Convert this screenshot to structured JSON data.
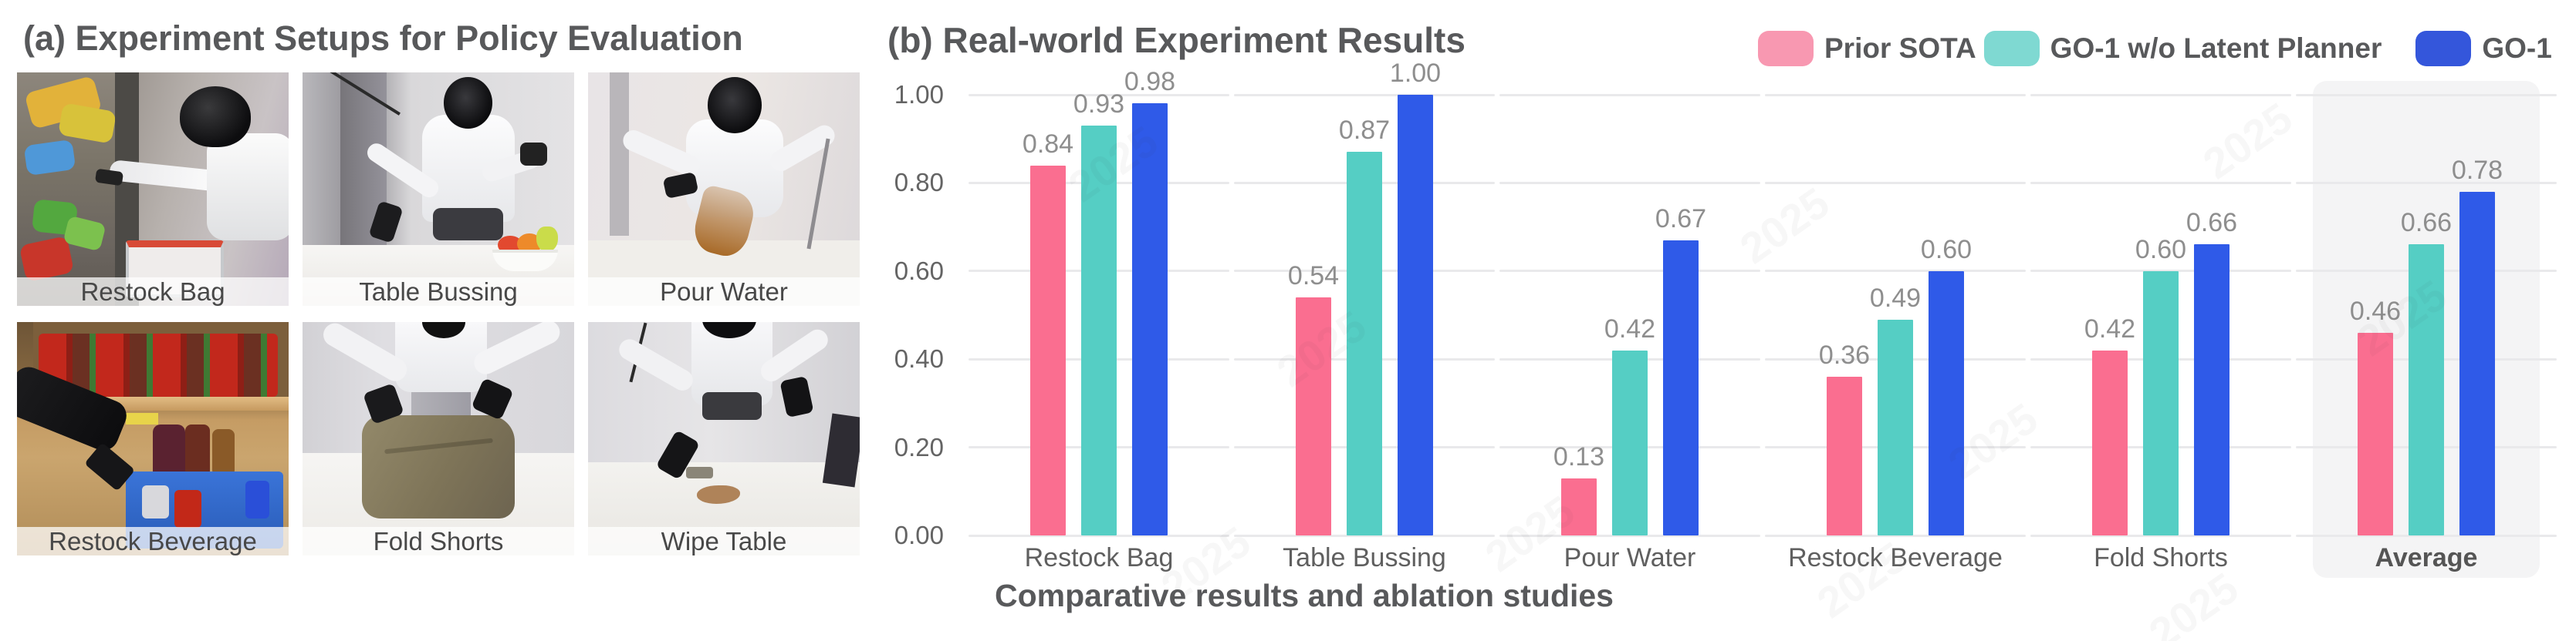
{
  "figure": {
    "panel_a_title": "(a) Experiment Setups for Policy Evaluation",
    "panel_b_title": "(b) Real-world Experiment Results",
    "caption": "Comparative results and ablation studies"
  },
  "setups": {
    "items": [
      {
        "label": "Restock Bag"
      },
      {
        "label": "Table Bussing"
      },
      {
        "label": "Pour Water"
      },
      {
        "label": "Restock Beverage"
      },
      {
        "label": "Fold Shorts"
      },
      {
        "label": "Wipe Table"
      }
    ]
  },
  "watermark": {
    "text": "2025"
  },
  "chart_data": {
    "type": "bar",
    "title": "(b) Real-world Experiment Results",
    "categories": [
      "Restock Bag",
      "Table Bussing",
      "Pour Water",
      "Restock Beverage",
      "Fold Shorts",
      "Average"
    ],
    "series": [
      {
        "name": "Prior SOTA",
        "color": "#FA6E90",
        "legend_color": "#F898B1",
        "values": [
          0.84,
          0.54,
          0.13,
          0.36,
          0.42,
          0.46
        ]
      },
      {
        "name": "GO-1 w/o Latent Planner",
        "color": "#55CEC4",
        "legend_color": "#7FD9D2",
        "values": [
          0.93,
          0.87,
          0.42,
          0.49,
          0.6,
          0.66
        ]
      },
      {
        "name": "GO-1",
        "color": "#2F5AE8",
        "legend_color": "#3456DB",
        "values": [
          0.98,
          1.0,
          0.67,
          0.6,
          0.66,
          0.78
        ]
      }
    ],
    "y_ticks": [
      "0.00",
      "0.20",
      "0.40",
      "0.60",
      "0.80",
      "1.00"
    ],
    "ylim": [
      0,
      1
    ],
    "value_labels": true,
    "value_label_format": "2-decimals",
    "grid": "horizontal-segmented",
    "legend_position": "top-right",
    "highlight_category": "Average",
    "xlabel": "",
    "ylabel": ""
  }
}
